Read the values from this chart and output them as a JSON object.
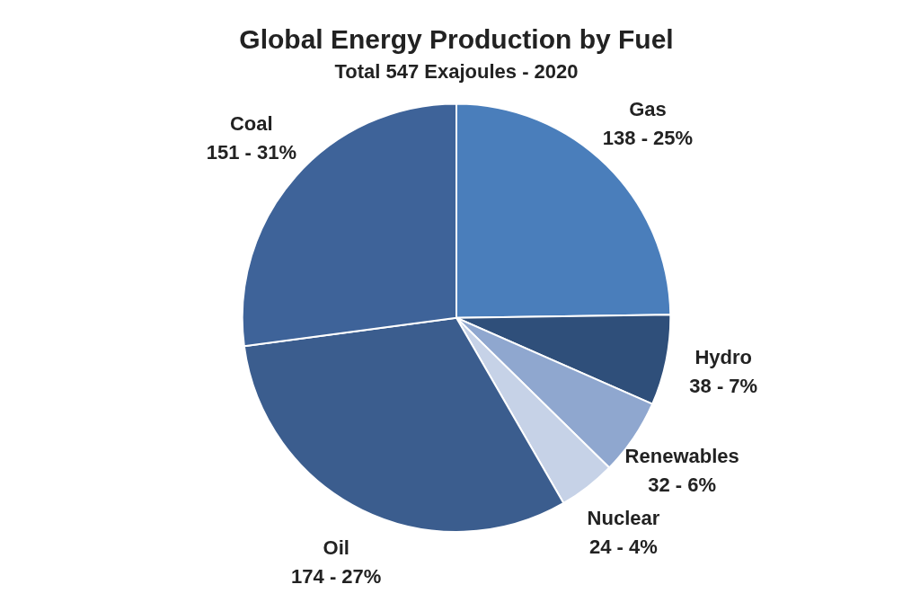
{
  "chart_data": {
    "type": "pie",
    "title": "Global Energy Production by Fuel",
    "subtitle": "Total 547 Exajoules - 2020",
    "categories": [
      "Gas",
      "Hydro",
      "Renewables",
      "Nuclear",
      "Oil",
      "Coal"
    ],
    "values": [
      138,
      38,
      32,
      24,
      174,
      151
    ],
    "value_labels": [
      "138 - 25%",
      "38 - 7%",
      "32 - 6%",
      "24 - 4%",
      "174 - 27%",
      "151 - 31%"
    ],
    "colors": [
      "#4a7ebb",
      "#2f4f7a",
      "#8fa7cf",
      "#c6d2e7",
      "#3b5d8e",
      "#3e6399"
    ],
    "legend": false
  }
}
